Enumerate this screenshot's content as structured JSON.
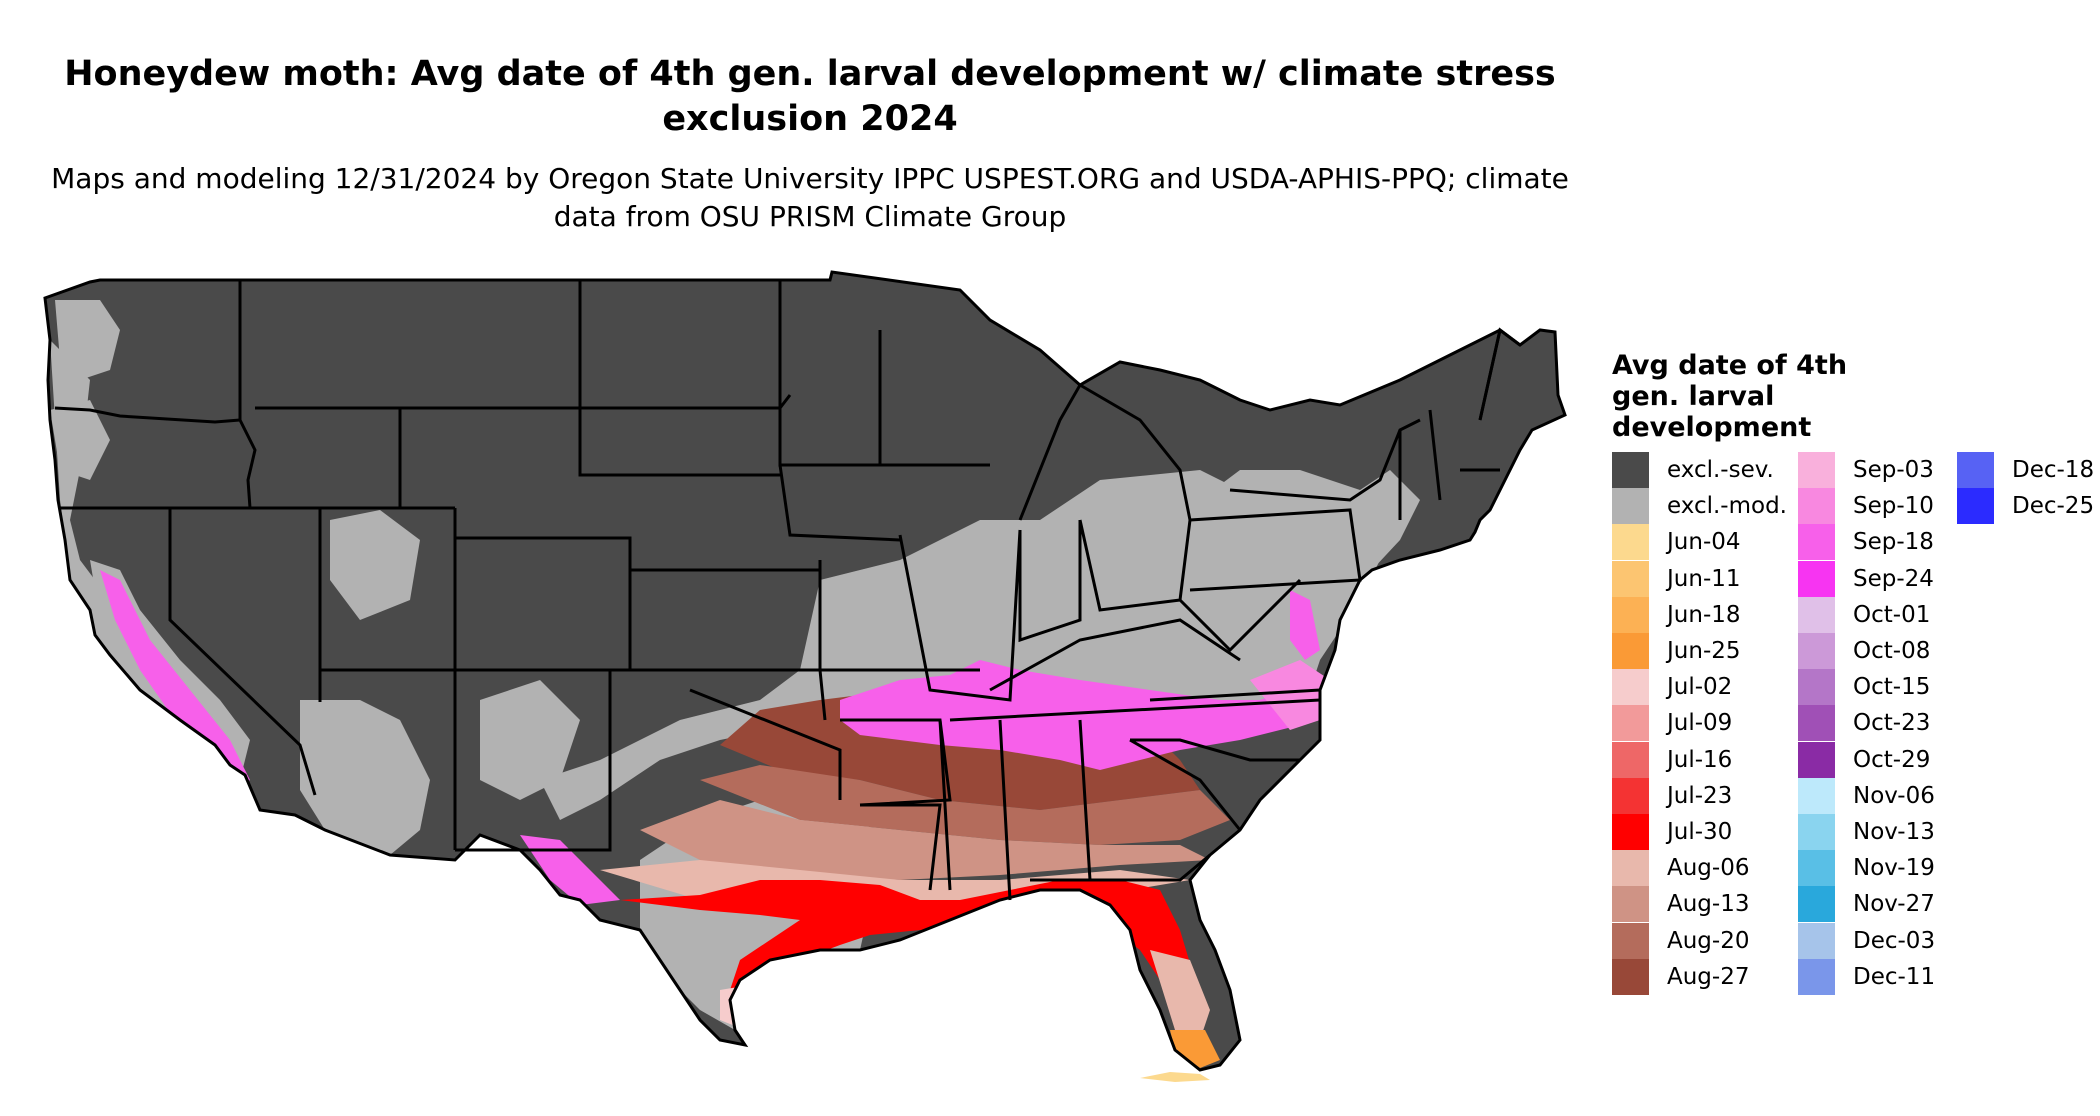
{
  "title": "Honeydew moth: Avg date of 4th gen. larval development w/ climate stress exclusion 2024",
  "subtitle": "Maps and modeling 12/31/2024 by Oregon State University IPPC USPEST.ORG and USDA-APHIS-PPQ; climate data from OSU PRISM Climate Group",
  "legend": {
    "title": "Avg date of 4th gen. larval development",
    "columns": [
      [
        {
          "label": "excl.-sev.",
          "color": "#4a4a4a"
        },
        {
          "label": "excl.-mod.",
          "color": "#b2b2b2"
        },
        {
          "label": "Jun-04",
          "color": "#fcd98e"
        },
        {
          "label": "Jun-11",
          "color": "#fcc571"
        },
        {
          "label": "Jun-18",
          "color": "#fcb154"
        },
        {
          "label": "Jun-25",
          "color": "#fa9a36"
        },
        {
          "label": "Jul-02",
          "color": "#f6cccc"
        },
        {
          "label": "Jul-09",
          "color": "#f29a9a"
        },
        {
          "label": "Jul-16",
          "color": "#ee6767"
        },
        {
          "label": "Jul-23",
          "color": "#f43333"
        },
        {
          "label": "Jul-30",
          "color": "#ff0000"
        },
        {
          "label": "Aug-06",
          "color": "#e8b8ac"
        },
        {
          "label": "Aug-13",
          "color": "#cf9385"
        },
        {
          "label": "Aug-20",
          "color": "#b46c5c"
        },
        {
          "label": "Aug-27",
          "color": "#984838"
        }
      ],
      [
        {
          "label": "Sep-03",
          "color": "#f9b0dc"
        },
        {
          "label": "Sep-10",
          "color": "#f888e0"
        },
        {
          "label": "Sep-18",
          "color": "#f760ea"
        },
        {
          "label": "Sep-24",
          "color": "#f734f2"
        },
        {
          "label": "Oct-01",
          "color": "#e0c0e8"
        },
        {
          "label": "Oct-08",
          "color": "#cc99d8"
        },
        {
          "label": "Oct-15",
          "color": "#b476c8"
        },
        {
          "label": "Oct-23",
          "color": "#a050b6"
        },
        {
          "label": "Oct-29",
          "color": "#8a2ba5"
        },
        {
          "label": "Nov-06",
          "color": "#bde9fb"
        },
        {
          "label": "Nov-13",
          "color": "#8ad4ef"
        },
        {
          "label": "Nov-19",
          "color": "#59bfe6"
        },
        {
          "label": "Nov-27",
          "color": "#29a8dc"
        },
        {
          "label": "Dec-03",
          "color": "#a6c4ea"
        },
        {
          "label": "Dec-11",
          "color": "#7a96ea"
        }
      ],
      [
        {
          "label": "Dec-18",
          "color": "#5762f4"
        },
        {
          "label": "Dec-25",
          "color": "#2b2bff"
        }
      ]
    ]
  },
  "map_colors": {
    "excl_sev": "#4a4a4a",
    "excl_mod": "#b2b2b2",
    "red": "#ff0000",
    "aug27": "#984838",
    "aug20": "#b46c5c",
    "aug13": "#cf9385",
    "aug06": "#e8b8ac",
    "jul02": "#f6cccc",
    "jun25": "#fa9a36",
    "jun04": "#fcd98e",
    "magenta": "#f760ea",
    "pink": "#f888e0",
    "blue": "#5762f4",
    "lightblue": "#8ad4ef",
    "white": "#ffffff"
  }
}
